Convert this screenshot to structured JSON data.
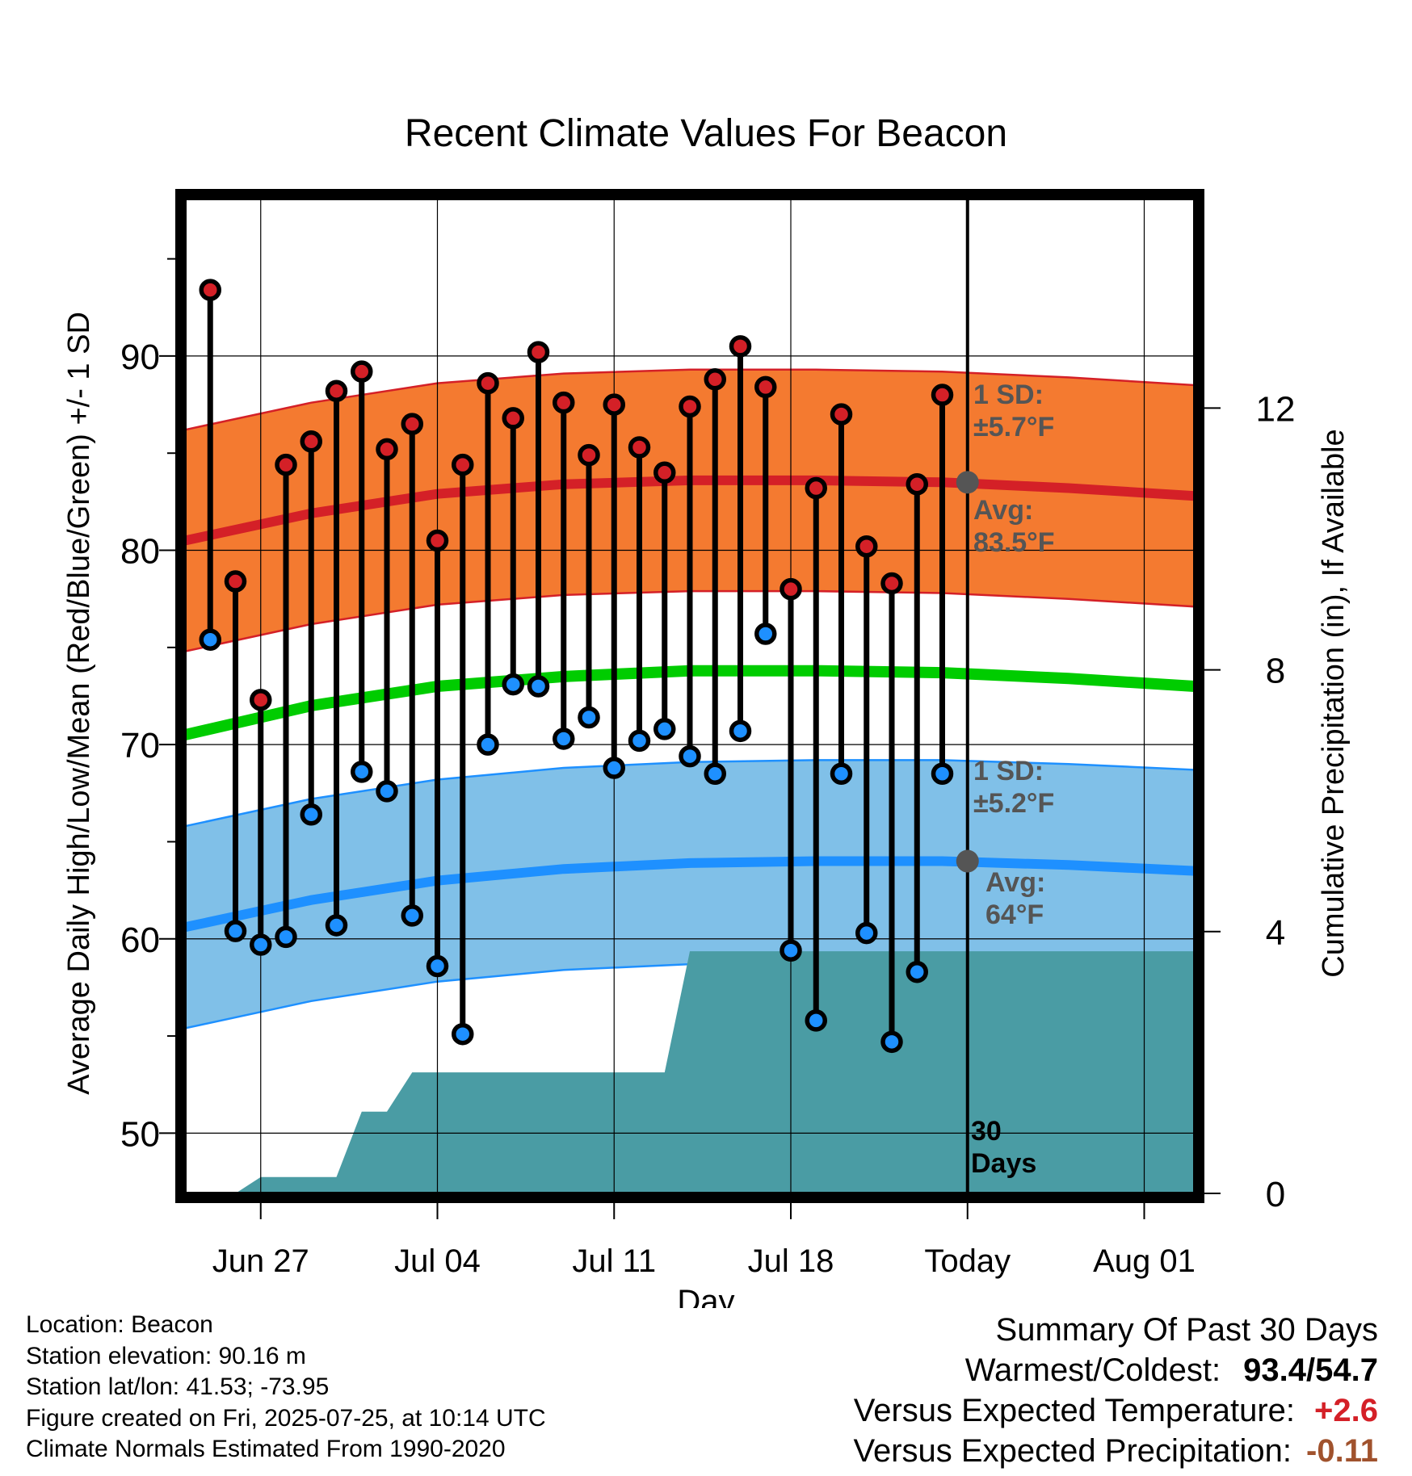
{
  "chart_data": {
    "type": "line",
    "title": "Recent Climate Values For Beacon",
    "xlabel": "Day",
    "ylabel": "Average Daily High/Low/Mean (Red/Blue/Green) +/- 1 SD",
    "ylabel_right": "Cumulative Precipitation (in), If Available",
    "x_range": [
      "2025-06-24",
      "2025-08-03"
    ],
    "ylim": [
      46.9,
      98.1
    ],
    "y_ticks": [
      50,
      60,
      70,
      80,
      90
    ],
    "ylim_right": [
      0,
      15.2
    ],
    "y_ticks_right": [
      0,
      4,
      8,
      12
    ],
    "x_ticks": [
      {
        "date": "2025-06-27",
        "label": "Jun 27"
      },
      {
        "date": "2025-07-04",
        "label": "Jul 04"
      },
      {
        "date": "2025-07-11",
        "label": "Jul 11"
      },
      {
        "date": "2025-07-18",
        "label": "Jul 18"
      },
      {
        "date": "2025-07-25",
        "label": "Today"
      },
      {
        "date": "2025-08-01",
        "label": "Aug 01"
      }
    ],
    "grid": true,
    "today": "2025-07-25",
    "colors": {
      "high_band": "#f47a30",
      "high_line": "#d42027",
      "mean_line": "#00cc00",
      "low_band": "#80c0e8",
      "low_line": "#1e90ff",
      "precip": "#4a9ca4",
      "high_dot": "#d42027",
      "low_dot": "#1e90ff",
      "marker": "#555555"
    },
    "normals": {
      "dates": [
        "2025-06-24",
        "2025-06-29",
        "2025-07-04",
        "2025-07-09",
        "2025-07-14",
        "2025-07-19",
        "2025-07-24",
        "2025-07-29",
        "2025-08-03"
      ],
      "high_avg": [
        80.5,
        81.9,
        82.9,
        83.4,
        83.6,
        83.6,
        83.5,
        83.2,
        82.8
      ],
      "high_sd": 5.7,
      "mean_avg": [
        70.5,
        72.0,
        73.0,
        73.5,
        73.8,
        73.8,
        73.7,
        73.4,
        73.0
      ],
      "low_avg": [
        60.6,
        62.0,
        63.0,
        63.6,
        63.9,
        64.0,
        64.0,
        63.8,
        63.5
      ],
      "low_sd": 5.2
    },
    "series": [
      {
        "name": "High",
        "x": [
          "2025-06-25",
          "2025-06-26",
          "2025-06-27",
          "2025-06-28",
          "2025-06-29",
          "2025-06-30",
          "2025-07-01",
          "2025-07-02",
          "2025-07-03",
          "2025-07-04",
          "2025-07-05",
          "2025-07-06",
          "2025-07-07",
          "2025-07-08",
          "2025-07-09",
          "2025-07-10",
          "2025-07-11",
          "2025-07-12",
          "2025-07-13",
          "2025-07-14",
          "2025-07-15",
          "2025-07-16",
          "2025-07-17",
          "2025-07-18",
          "2025-07-19",
          "2025-07-20",
          "2025-07-21",
          "2025-07-22",
          "2025-07-23",
          "2025-07-24"
        ],
        "values": [
          93.4,
          78.4,
          72.3,
          84.4,
          85.6,
          88.2,
          89.2,
          85.2,
          86.5,
          80.5,
          84.4,
          88.6,
          86.8,
          90.2,
          87.6,
          84.9,
          87.5,
          85.3,
          84.0,
          87.4,
          88.8,
          90.5,
          88.4,
          78.0,
          83.2,
          87.0,
          80.2,
          78.3,
          83.4,
          88.0
        ]
      },
      {
        "name": "Low",
        "x": [
          "2025-06-25",
          "2025-06-26",
          "2025-06-27",
          "2025-06-28",
          "2025-06-29",
          "2025-06-30",
          "2025-07-01",
          "2025-07-02",
          "2025-07-03",
          "2025-07-04",
          "2025-07-05",
          "2025-07-06",
          "2025-07-07",
          "2025-07-08",
          "2025-07-09",
          "2025-07-10",
          "2025-07-11",
          "2025-07-12",
          "2025-07-13",
          "2025-07-14",
          "2025-07-15",
          "2025-07-16",
          "2025-07-17",
          "2025-07-18",
          "2025-07-19",
          "2025-07-20",
          "2025-07-21",
          "2025-07-22",
          "2025-07-23",
          "2025-07-24"
        ],
        "values": [
          75.4,
          60.4,
          59.7,
          60.1,
          66.4,
          60.7,
          68.6,
          67.6,
          61.2,
          58.6,
          55.1,
          70.0,
          73.1,
          73.0,
          70.3,
          71.4,
          68.8,
          70.2,
          70.8,
          69.4,
          68.5,
          70.7,
          75.7,
          59.4,
          55.8,
          68.5,
          60.3,
          54.7,
          58.3,
          68.5
        ]
      }
    ],
    "precipitation": {
      "dates": [
        "2025-06-26",
        "2025-06-27",
        "2025-06-28",
        "2025-06-29",
        "2025-06-30",
        "2025-07-01",
        "2025-07-02",
        "2025-07-03",
        "2025-07-04",
        "2025-07-05",
        "2025-07-06",
        "2025-07-07",
        "2025-07-08",
        "2025-07-09",
        "2025-07-10",
        "2025-07-11",
        "2025-07-12",
        "2025-07-13",
        "2025-07-14",
        "2025-07-15",
        "2025-07-16",
        "2025-07-17",
        "2025-07-18",
        "2025-07-19",
        "2025-07-20",
        "2025-07-21",
        "2025-07-22",
        "2025-07-23",
        "2025-07-24",
        "2025-07-25",
        "2025-08-03"
      ],
      "cumulative": [
        0.0,
        0.25,
        0.25,
        0.25,
        0.25,
        1.25,
        1.25,
        1.85,
        1.85,
        1.85,
        1.85,
        1.85,
        1.85,
        1.85,
        1.85,
        1.85,
        1.85,
        1.85,
        3.7,
        3.7,
        3.7,
        3.7,
        3.7,
        3.7,
        3.7,
        3.7,
        3.7,
        3.7,
        3.7,
        3.7,
        3.7
      ]
    },
    "annotations": {
      "high_sd_label": [
        "1 SD:",
        "±5.7°F"
      ],
      "high_avg_label": [
        "Avg:",
        "83.5°F"
      ],
      "low_sd_label": [
        "1 SD:",
        "±5.2°F"
      ],
      "low_avg_label": [
        "Avg:",
        "64°F"
      ],
      "period_label": [
        "30",
        "Days"
      ]
    }
  },
  "footer": {
    "location": "Location: Beacon",
    "elevation": "Station elevation: 90.16 m",
    "latlon": "Station lat/lon: 41.53; -73.95",
    "created": "Figure created on Fri, 2025-07-25, at 10:14 UTC",
    "normals": "Climate Normals Estimated From 1990-2020"
  },
  "summary": {
    "title": "Summary Of Past 30 Days",
    "warm_cold_label": "Warmest/Coldest:",
    "warmest": "93.4",
    "separator": "/",
    "coldest": "54.7",
    "temp_label": "Versus Expected Temperature:",
    "temp_value": "+2.6",
    "temp_color": "#d42027",
    "precip_label": "Versus Expected Precipitation:",
    "precip_value": "-0.11",
    "precip_color": "#a0522d"
  }
}
